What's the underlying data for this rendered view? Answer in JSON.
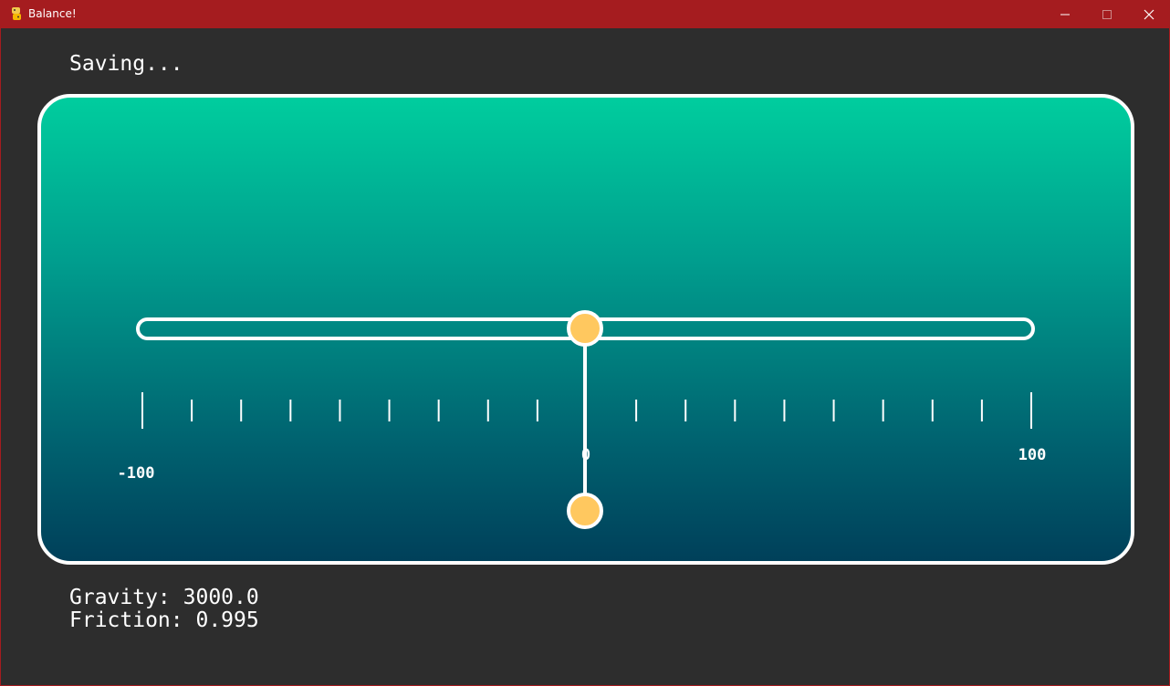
{
  "window": {
    "title": "Balance!",
    "icon": "python-snake-icon",
    "controls": [
      "minimize-icon",
      "maximize-icon",
      "close-icon"
    ]
  },
  "status_text": "Saving...",
  "scale": {
    "min_label": "-100",
    "zero_label": "0",
    "max_label": "100"
  },
  "simulation": {
    "beam_position": 0,
    "pivot_position": 0
  },
  "info": {
    "gravity": "Gravity: 3000.0",
    "friction": "Friction: 0.995"
  },
  "colors": {
    "titlebar": "#a51c1f",
    "background": "#2d2d2d",
    "gradient_top": "#00cd9e",
    "gradient_bottom": "#00405a",
    "ball": "#ffc85f",
    "outline": "#ffffff"
  }
}
